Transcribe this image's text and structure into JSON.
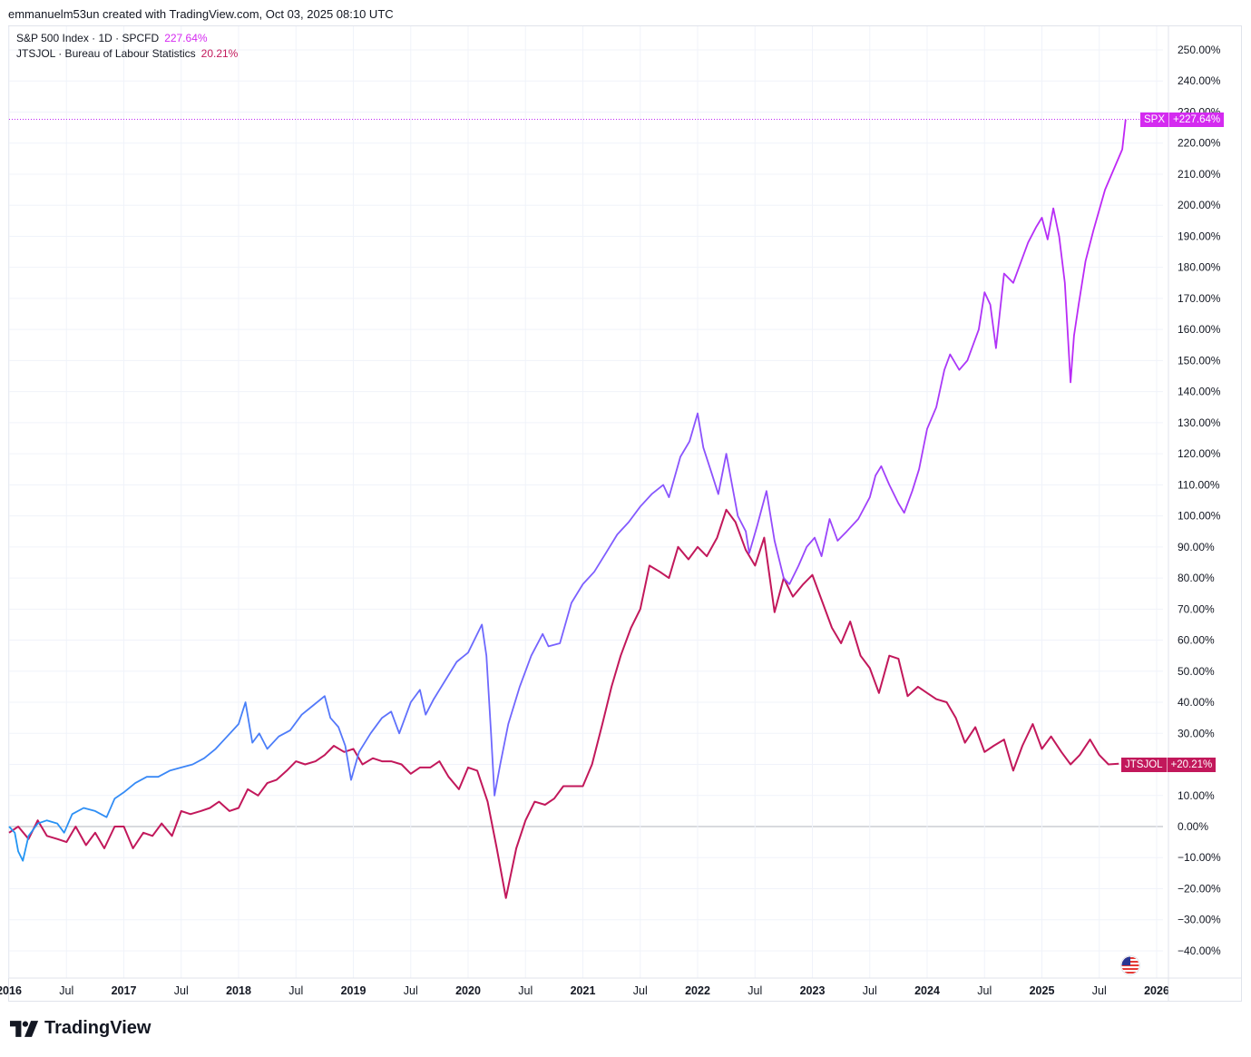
{
  "header": {
    "text": "emmanuelm53un created with TradingView.com, Oct 03, 2025 08:10 UTC"
  },
  "legend": {
    "spx_name": "S&P 500 Index · 1D · SPCFD",
    "spx_value": "227.64%",
    "jtsjol_name": "JTSJOL · Bureau of Labour Statistics",
    "jtsjol_value": "20.21%"
  },
  "price_tags": {
    "spx_symbol": "SPX",
    "spx_value": "+227.64%",
    "jtsjol_symbol": "JTSJOL",
    "jtsjol_value": "+20.21%"
  },
  "branding": {
    "logo_text": "TradingView"
  },
  "colors": {
    "spx_start": "#2196f3",
    "spx_mid": "#7b61ff",
    "spx_end": "#c026f5",
    "jtsjol": "#c2185b",
    "grid": "#f0f3fa",
    "zero_line": "#b2b5be",
    "axis_text": "#131722"
  },
  "chart_data": {
    "type": "line",
    "y_unit": "%",
    "ylim": [
      -45,
      255
    ],
    "y_ticks": [
      250,
      240,
      230,
      220,
      210,
      200,
      190,
      180,
      170,
      160,
      150,
      140,
      130,
      120,
      110,
      100,
      90,
      80,
      70,
      60,
      50,
      40,
      30,
      20,
      10,
      0,
      -10,
      -20,
      -30,
      -40
    ],
    "y_tick_labels": [
      "250.00%",
      "240.00%",
      "230.00%",
      "220.00%",
      "210.00%",
      "200.00%",
      "190.00%",
      "180.00%",
      "170.00%",
      "160.00%",
      "150.00%",
      "140.00%",
      "130.00%",
      "120.00%",
      "110.00%",
      "100.00%",
      "90.00%",
      "80.00%",
      "70.00%",
      "60.00%",
      "50.00%",
      "40.00%",
      "30.00%",
      "20.00%",
      "10.00%",
      "0.00%",
      "−10.00%",
      "−20.00%",
      "−30.00%",
      "−40.00%"
    ],
    "xlim": [
      2016.0,
      2026.2
    ],
    "x_ticks": [
      {
        "value": 2016.0,
        "label": "2016",
        "bold": true
      },
      {
        "value": 2016.5,
        "label": "Jul",
        "bold": false
      },
      {
        "value": 2017.0,
        "label": "2017",
        "bold": true
      },
      {
        "value": 2017.5,
        "label": "Jul",
        "bold": false
      },
      {
        "value": 2018.0,
        "label": "2018",
        "bold": true
      },
      {
        "value": 2018.5,
        "label": "Jul",
        "bold": false
      },
      {
        "value": 2019.0,
        "label": "2019",
        "bold": true
      },
      {
        "value": 2019.5,
        "label": "Jul",
        "bold": false
      },
      {
        "value": 2020.0,
        "label": "2020",
        "bold": true
      },
      {
        "value": 2020.5,
        "label": "Jul",
        "bold": false
      },
      {
        "value": 2021.0,
        "label": "2021",
        "bold": true
      },
      {
        "value": 2021.5,
        "label": "Jul",
        "bold": false
      },
      {
        "value": 2022.0,
        "label": "2022",
        "bold": true
      },
      {
        "value": 2022.5,
        "label": "Jul",
        "bold": false
      },
      {
        "value": 2023.0,
        "label": "2023",
        "bold": true
      },
      {
        "value": 2023.5,
        "label": "Jul",
        "bold": false
      },
      {
        "value": 2024.0,
        "label": "2024",
        "bold": true
      },
      {
        "value": 2024.5,
        "label": "Jul",
        "bold": false
      },
      {
        "value": 2025.0,
        "label": "2025",
        "bold": true
      },
      {
        "value": 2025.5,
        "label": "Jul",
        "bold": false
      },
      {
        "value": 2026.0,
        "label": "2026",
        "bold": true
      }
    ],
    "series": [
      {
        "name": "S&P 500 Index · 1D · SPCFD",
        "points": [
          [
            2016.0,
            0
          ],
          [
            2016.05,
            -2
          ],
          [
            2016.08,
            -8
          ],
          [
            2016.12,
            -11
          ],
          [
            2016.17,
            -3
          ],
          [
            2016.25,
            1
          ],
          [
            2016.33,
            2
          ],
          [
            2016.42,
            1
          ],
          [
            2016.48,
            -2
          ],
          [
            2016.55,
            4
          ],
          [
            2016.65,
            6
          ],
          [
            2016.75,
            5
          ],
          [
            2016.85,
            3
          ],
          [
            2016.92,
            9
          ],
          [
            2017.0,
            11
          ],
          [
            2017.1,
            14
          ],
          [
            2017.2,
            16
          ],
          [
            2017.3,
            16
          ],
          [
            2017.4,
            18
          ],
          [
            2017.5,
            19
          ],
          [
            2017.6,
            20
          ],
          [
            2017.7,
            22
          ],
          [
            2017.8,
            25
          ],
          [
            2017.9,
            29
          ],
          [
            2018.0,
            33
          ],
          [
            2018.06,
            40
          ],
          [
            2018.12,
            27
          ],
          [
            2018.18,
            30
          ],
          [
            2018.25,
            25
          ],
          [
            2018.35,
            29
          ],
          [
            2018.45,
            31
          ],
          [
            2018.55,
            36
          ],
          [
            2018.65,
            39
          ],
          [
            2018.75,
            42
          ],
          [
            2018.8,
            35
          ],
          [
            2018.87,
            32
          ],
          [
            2018.93,
            26
          ],
          [
            2018.98,
            15
          ],
          [
            2019.05,
            24
          ],
          [
            2019.15,
            30
          ],
          [
            2019.25,
            35
          ],
          [
            2019.33,
            37
          ],
          [
            2019.4,
            30
          ],
          [
            2019.5,
            40
          ],
          [
            2019.58,
            44
          ],
          [
            2019.63,
            36
          ],
          [
            2019.7,
            41
          ],
          [
            2019.8,
            47
          ],
          [
            2019.9,
            53
          ],
          [
            2020.0,
            56
          ],
          [
            2020.12,
            65
          ],
          [
            2020.16,
            55
          ],
          [
            2020.2,
            30
          ],
          [
            2020.23,
            10
          ],
          [
            2020.28,
            20
          ],
          [
            2020.35,
            33
          ],
          [
            2020.45,
            45
          ],
          [
            2020.55,
            55
          ],
          [
            2020.65,
            62
          ],
          [
            2020.7,
            58
          ],
          [
            2020.8,
            59
          ],
          [
            2020.9,
            72
          ],
          [
            2021.0,
            78
          ],
          [
            2021.1,
            82
          ],
          [
            2021.2,
            88
          ],
          [
            2021.3,
            94
          ],
          [
            2021.4,
            98
          ],
          [
            2021.5,
            103
          ],
          [
            2021.6,
            107
          ],
          [
            2021.7,
            110
          ],
          [
            2021.75,
            106
          ],
          [
            2021.85,
            119
          ],
          [
            2021.93,
            124
          ],
          [
            2022.0,
            133
          ],
          [
            2022.05,
            122
          ],
          [
            2022.12,
            114
          ],
          [
            2022.18,
            107
          ],
          [
            2022.25,
            120
          ],
          [
            2022.35,
            100
          ],
          [
            2022.42,
            95
          ],
          [
            2022.45,
            88
          ],
          [
            2022.52,
            97
          ],
          [
            2022.6,
            108
          ],
          [
            2022.67,
            92
          ],
          [
            2022.75,
            80
          ],
          [
            2022.8,
            78
          ],
          [
            2022.88,
            84
          ],
          [
            2022.95,
            90
          ],
          [
            2023.02,
            93
          ],
          [
            2023.08,
            87
          ],
          [
            2023.15,
            99
          ],
          [
            2023.22,
            92
          ],
          [
            2023.3,
            95
          ],
          [
            2023.4,
            99
          ],
          [
            2023.5,
            106
          ],
          [
            2023.55,
            113
          ],
          [
            2023.6,
            116
          ],
          [
            2023.67,
            110
          ],
          [
            2023.75,
            104
          ],
          [
            2023.8,
            101
          ],
          [
            2023.87,
            108
          ],
          [
            2023.93,
            115
          ],
          [
            2024.0,
            128
          ],
          [
            2024.08,
            135
          ],
          [
            2024.15,
            147
          ],
          [
            2024.2,
            152
          ],
          [
            2024.28,
            147
          ],
          [
            2024.35,
            150
          ],
          [
            2024.45,
            160
          ],
          [
            2024.5,
            172
          ],
          [
            2024.55,
            168
          ],
          [
            2024.6,
            154
          ],
          [
            2024.67,
            178
          ],
          [
            2024.75,
            175
          ],
          [
            2024.8,
            180
          ],
          [
            2024.88,
            188
          ],
          [
            2024.95,
            193
          ],
          [
            2025.0,
            196
          ],
          [
            2025.05,
            189
          ],
          [
            2025.1,
            199
          ],
          [
            2025.15,
            190
          ],
          [
            2025.2,
            175
          ],
          [
            2025.25,
            143
          ],
          [
            2025.28,
            158
          ],
          [
            2025.32,
            168
          ],
          [
            2025.38,
            182
          ],
          [
            2025.45,
            192
          ],
          [
            2025.55,
            205
          ],
          [
            2025.62,
            211
          ],
          [
            2025.7,
            218
          ],
          [
            2025.73,
            227.64
          ]
        ]
      },
      {
        "name": "JTSJOL · Bureau of Labour Statistics",
        "points": [
          [
            2016.0,
            -2
          ],
          [
            2016.08,
            0
          ],
          [
            2016.17,
            -4
          ],
          [
            2016.25,
            2
          ],
          [
            2016.33,
            -3
          ],
          [
            2016.42,
            -4
          ],
          [
            2016.5,
            -5
          ],
          [
            2016.58,
            0
          ],
          [
            2016.67,
            -6
          ],
          [
            2016.75,
            -2
          ],
          [
            2016.83,
            -7
          ],
          [
            2016.92,
            0
          ],
          [
            2017.0,
            0
          ],
          [
            2017.08,
            -7
          ],
          [
            2017.17,
            -2
          ],
          [
            2017.25,
            -3
          ],
          [
            2017.33,
            1
          ],
          [
            2017.42,
            -3
          ],
          [
            2017.5,
            5
          ],
          [
            2017.58,
            4
          ],
          [
            2017.67,
            5
          ],
          [
            2017.75,
            6
          ],
          [
            2017.83,
            8
          ],
          [
            2017.92,
            5
          ],
          [
            2018.0,
            6
          ],
          [
            2018.08,
            12
          ],
          [
            2018.17,
            10
          ],
          [
            2018.25,
            14
          ],
          [
            2018.33,
            15
          ],
          [
            2018.42,
            18
          ],
          [
            2018.5,
            21
          ],
          [
            2018.58,
            20
          ],
          [
            2018.67,
            21
          ],
          [
            2018.75,
            23
          ],
          [
            2018.83,
            26
          ],
          [
            2018.92,
            24
          ],
          [
            2019.0,
            25
          ],
          [
            2019.08,
            20
          ],
          [
            2019.17,
            22
          ],
          [
            2019.25,
            21
          ],
          [
            2019.33,
            21
          ],
          [
            2019.42,
            20
          ],
          [
            2019.5,
            17
          ],
          [
            2019.58,
            19
          ],
          [
            2019.67,
            19
          ],
          [
            2019.75,
            21
          ],
          [
            2019.83,
            16
          ],
          [
            2019.92,
            12
          ],
          [
            2020.0,
            19
          ],
          [
            2020.08,
            18
          ],
          [
            2020.17,
            8
          ],
          [
            2020.25,
            -7
          ],
          [
            2020.33,
            -23
          ],
          [
            2020.42,
            -7
          ],
          [
            2020.5,
            2
          ],
          [
            2020.58,
            8
          ],
          [
            2020.67,
            7
          ],
          [
            2020.75,
            9
          ],
          [
            2020.83,
            13
          ],
          [
            2020.92,
            13
          ],
          [
            2021.0,
            13
          ],
          [
            2021.08,
            20
          ],
          [
            2021.17,
            33
          ],
          [
            2021.25,
            45
          ],
          [
            2021.33,
            55
          ],
          [
            2021.42,
            64
          ],
          [
            2021.5,
            70
          ],
          [
            2021.58,
            84
          ],
          [
            2021.67,
            82
          ],
          [
            2021.75,
            80
          ],
          [
            2021.83,
            90
          ],
          [
            2021.92,
            86
          ],
          [
            2022.0,
            90
          ],
          [
            2022.08,
            87
          ],
          [
            2022.17,
            93
          ],
          [
            2022.25,
            102
          ],
          [
            2022.33,
            98
          ],
          [
            2022.42,
            89
          ],
          [
            2022.5,
            84
          ],
          [
            2022.58,
            93
          ],
          [
            2022.67,
            69
          ],
          [
            2022.75,
            80
          ],
          [
            2022.83,
            74
          ],
          [
            2022.92,
            78
          ],
          [
            2023.0,
            81
          ],
          [
            2023.08,
            73
          ],
          [
            2023.17,
            64
          ],
          [
            2023.25,
            59
          ],
          [
            2023.33,
            66
          ],
          [
            2023.42,
            55
          ],
          [
            2023.5,
            51
          ],
          [
            2023.58,
            43
          ],
          [
            2023.67,
            55
          ],
          [
            2023.75,
            54
          ],
          [
            2023.83,
            42
          ],
          [
            2023.92,
            45
          ],
          [
            2024.0,
            43
          ],
          [
            2024.08,
            41
          ],
          [
            2024.17,
            40
          ],
          [
            2024.25,
            35
          ],
          [
            2024.33,
            27
          ],
          [
            2024.42,
            32
          ],
          [
            2024.5,
            24
          ],
          [
            2024.58,
            26
          ],
          [
            2024.67,
            28
          ],
          [
            2024.75,
            18
          ],
          [
            2024.83,
            26
          ],
          [
            2024.92,
            33
          ],
          [
            2025.0,
            25
          ],
          [
            2025.08,
            29
          ],
          [
            2025.17,
            24
          ],
          [
            2025.25,
            20
          ],
          [
            2025.33,
            23
          ],
          [
            2025.42,
            28
          ],
          [
            2025.5,
            23
          ],
          [
            2025.58,
            20
          ],
          [
            2025.67,
            20.21
          ]
        ]
      }
    ]
  }
}
